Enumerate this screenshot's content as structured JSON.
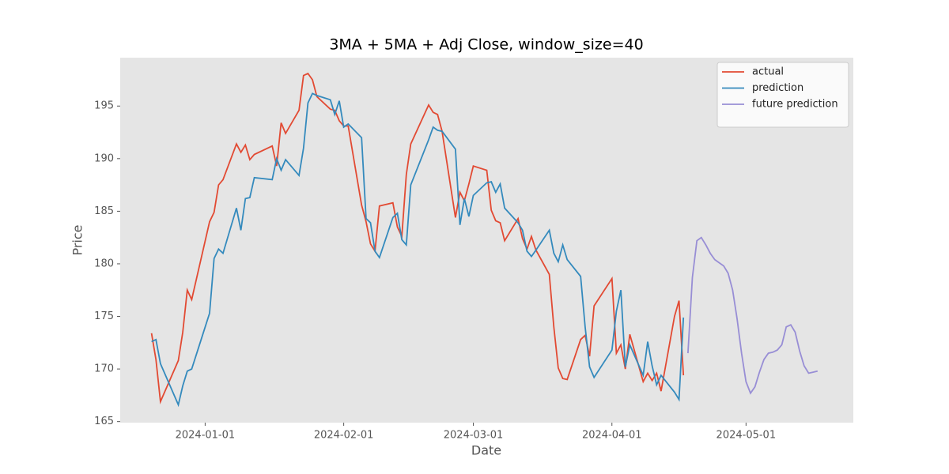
{
  "chart_data": {
    "type": "line",
    "title": "3MA + 5MA + Adj Close, window_size=40",
    "x_label": "Date",
    "y_label": "Price",
    "xlim": [
      "2023-12-13",
      "2024-05-25"
    ],
    "ylim": [
      164.9,
      199.6
    ],
    "xticks": [
      "2024-01-01",
      "2024-02-01",
      "2024-03-01",
      "2024-04-01",
      "2024-05-01"
    ],
    "yticks": [
      165,
      170,
      175,
      180,
      185,
      190,
      195
    ],
    "grid": false,
    "legend": "upper right",
    "background": "#e5e5e5",
    "series": [
      {
        "name": "actual",
        "color": "#e24a33",
        "x": [
          "2023-12-20",
          "2023-12-21",
          "2023-12-22",
          "2023-12-26",
          "2023-12-27",
          "2023-12-28",
          "2023-12-29",
          "2024-01-02",
          "2024-01-03",
          "2024-01-04",
          "2024-01-05",
          "2024-01-08",
          "2024-01-09",
          "2024-01-10",
          "2024-01-11",
          "2024-01-12",
          "2024-01-16",
          "2024-01-17",
          "2024-01-18",
          "2024-01-19",
          "2024-01-22",
          "2024-01-23",
          "2024-01-24",
          "2024-01-25",
          "2024-01-26",
          "2024-01-29",
          "2024-01-30",
          "2024-01-31",
          "2024-02-01",
          "2024-02-02",
          "2024-02-05",
          "2024-02-06",
          "2024-02-07",
          "2024-02-08",
          "2024-02-09",
          "2024-02-12",
          "2024-02-13",
          "2024-02-14",
          "2024-02-15",
          "2024-02-16",
          "2024-02-20",
          "2024-02-21",
          "2024-02-22",
          "2024-02-23",
          "2024-02-26",
          "2024-02-27",
          "2024-02-28",
          "2024-02-29",
          "2024-03-01",
          "2024-03-04",
          "2024-03-05",
          "2024-03-06",
          "2024-03-07",
          "2024-03-08",
          "2024-03-11",
          "2024-03-12",
          "2024-03-13",
          "2024-03-14",
          "2024-03-15",
          "2024-03-18",
          "2024-03-19",
          "2024-03-20",
          "2024-03-21",
          "2024-03-22",
          "2024-03-25",
          "2024-03-26",
          "2024-03-27",
          "2024-03-28",
          "2024-04-01",
          "2024-04-02",
          "2024-04-03",
          "2024-04-04",
          "2024-04-05",
          "2024-04-08",
          "2024-04-09",
          "2024-04-10",
          "2024-04-11",
          "2024-04-12",
          "2024-04-15",
          "2024-04-16",
          "2024-04-17"
        ],
        "values": [
          173.4,
          170.9,
          166.9,
          170.8,
          173.5,
          177.5,
          176.6,
          184.0,
          184.9,
          187.5,
          188.0,
          191.4,
          190.6,
          191.3,
          189.9,
          190.4,
          191.2,
          189.3,
          193.4,
          192.4,
          194.6,
          197.9,
          198.1,
          197.5,
          195.9,
          194.7,
          194.6,
          193.6,
          193.1,
          193.1,
          185.6,
          184.0,
          181.9,
          181.2,
          185.5,
          185.8,
          183.5,
          182.6,
          188.5,
          191.4,
          195.1,
          194.4,
          194.2,
          192.6,
          184.4,
          186.8,
          186.0,
          187.6,
          189.3,
          188.9,
          185.1,
          184.1,
          183.9,
          182.2,
          184.3,
          182.4,
          181.4,
          182.6,
          181.3,
          179.0,
          174.0,
          170.1,
          169.1,
          169.0,
          172.8,
          173.2,
          171.2,
          176.0,
          178.6,
          171.5,
          172.3,
          170.0,
          173.3,
          168.8,
          169.6,
          168.9,
          169.6,
          167.9,
          175.0,
          176.5,
          169.4
        ]
      },
      {
        "name": "prediction",
        "color": "#348abd",
        "x": [
          "2023-12-20",
          "2023-12-21",
          "2023-12-22",
          "2023-12-26",
          "2023-12-27",
          "2023-12-28",
          "2023-12-29",
          "2024-01-02",
          "2024-01-03",
          "2024-01-04",
          "2024-01-05",
          "2024-01-08",
          "2024-01-09",
          "2024-01-10",
          "2024-01-11",
          "2024-01-12",
          "2024-01-16",
          "2024-01-17",
          "2024-01-18",
          "2024-01-19",
          "2024-01-22",
          "2024-01-23",
          "2024-01-24",
          "2024-01-25",
          "2024-01-26",
          "2024-01-29",
          "2024-01-30",
          "2024-01-31",
          "2024-02-01",
          "2024-02-02",
          "2024-02-05",
          "2024-02-06",
          "2024-02-07",
          "2024-02-08",
          "2024-02-09",
          "2024-02-12",
          "2024-02-13",
          "2024-02-14",
          "2024-02-15",
          "2024-02-16",
          "2024-02-20",
          "2024-02-21",
          "2024-02-22",
          "2024-02-23",
          "2024-02-26",
          "2024-02-27",
          "2024-02-28",
          "2024-02-29",
          "2024-03-01",
          "2024-03-04",
          "2024-03-05",
          "2024-03-06",
          "2024-03-07",
          "2024-03-08",
          "2024-03-11",
          "2024-03-12",
          "2024-03-13",
          "2024-03-14",
          "2024-03-15",
          "2024-03-18",
          "2024-03-19",
          "2024-03-20",
          "2024-03-21",
          "2024-03-22",
          "2024-03-25",
          "2024-03-26",
          "2024-03-27",
          "2024-03-28",
          "2024-04-01",
          "2024-04-02",
          "2024-04-03",
          "2024-04-04",
          "2024-04-05",
          "2024-04-08",
          "2024-04-09",
          "2024-04-10",
          "2024-04-11",
          "2024-04-12",
          "2024-04-15",
          "2024-04-16",
          "2024-04-17"
        ],
        "values": [
          172.6,
          172.8,
          170.5,
          166.6,
          168.4,
          169.8,
          170.0,
          175.3,
          180.5,
          181.4,
          181.0,
          185.3,
          183.2,
          186.2,
          186.3,
          188.2,
          188.0,
          190.0,
          188.9,
          189.9,
          188.4,
          191.0,
          195.3,
          196.2,
          196.0,
          195.6,
          194.2,
          195.5,
          193.0,
          193.3,
          192.0,
          184.3,
          183.9,
          181.2,
          180.6,
          184.4,
          184.8,
          182.3,
          181.8,
          187.5,
          191.8,
          193.0,
          192.7,
          192.6,
          190.9,
          183.7,
          186.2,
          184.5,
          186.5,
          187.7,
          187.8,
          186.8,
          187.6,
          185.3,
          183.9,
          183.2,
          181.2,
          180.7,
          181.3,
          183.2,
          181.0,
          180.2,
          181.8,
          180.4,
          178.8,
          174.0,
          170.2,
          169.2,
          171.8,
          175.5,
          177.5,
          170.2,
          172.3,
          169.4,
          172.6,
          170.3,
          168.5,
          169.4,
          167.8,
          167.1,
          174.9
        ]
      },
      {
        "name": "future prediction",
        "color": "#988ed5",
        "x": [
          "2024-04-18",
          "2024-04-19",
          "2024-04-20",
          "2024-04-21",
          "2024-04-22",
          "2024-04-23",
          "2024-04-24",
          "2024-04-25",
          "2024-04-26",
          "2024-04-27",
          "2024-04-28",
          "2024-04-29",
          "2024-04-30",
          "2024-05-01",
          "2024-05-02",
          "2024-05-03",
          "2024-05-04",
          "2024-05-05",
          "2024-05-06",
          "2024-05-07",
          "2024-05-08",
          "2024-05-09",
          "2024-05-10",
          "2024-05-11",
          "2024-05-12",
          "2024-05-13",
          "2024-05-14",
          "2024-05-15",
          "2024-05-16",
          "2024-05-17"
        ],
        "values": [
          171.5,
          178.7,
          182.2,
          182.5,
          181.8,
          181.0,
          180.4,
          180.1,
          179.8,
          179.1,
          177.5,
          174.8,
          171.5,
          168.8,
          167.7,
          168.3,
          169.7,
          170.9,
          171.5,
          171.6,
          171.8,
          172.3,
          174.0,
          174.2,
          173.5,
          171.7,
          170.3,
          169.6,
          169.7,
          169.8
        ]
      }
    ]
  }
}
